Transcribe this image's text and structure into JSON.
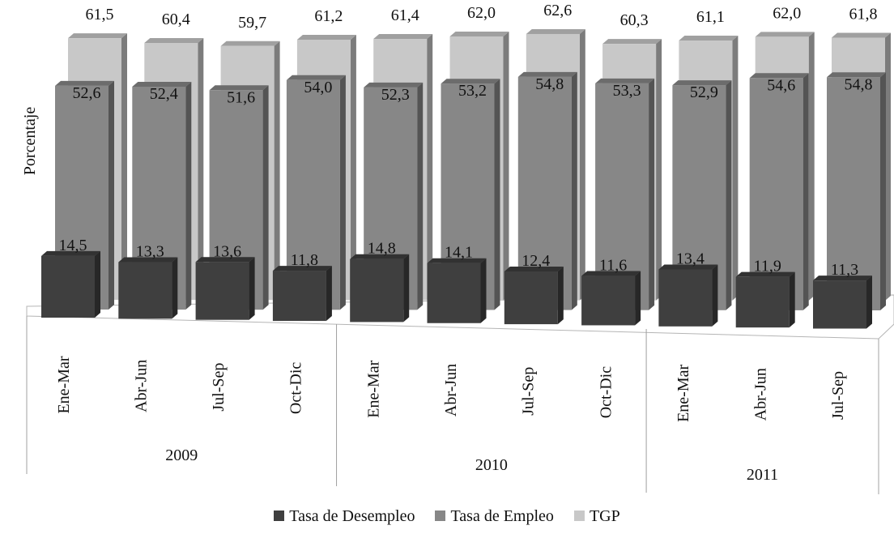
{
  "chart_data": {
    "type": "bar",
    "ylabel": "Porcentaje",
    "groups": [
      {
        "label": "2009",
        "categories": [
          "Ene-Mar",
          "Abr-Jun",
          "Jul-Sep",
          "Oct-Dic"
        ]
      },
      {
        "label": "2010",
        "categories": [
          "Ene-Mar",
          "Abr-Jun",
          "Jul-Sep",
          "Oct-Dic"
        ]
      },
      {
        "label": "2011",
        "categories": [
          "Ene-Mar",
          "Abr-Jun",
          "Jul-Sep"
        ]
      }
    ],
    "categories": [
      "Ene-Mar",
      "Abr-Jun",
      "Jul-Sep",
      "Oct-Dic",
      "Ene-Mar",
      "Abr-Jun",
      "Jul-Sep",
      "Oct-Dic",
      "Ene-Mar",
      "Abr-Jun",
      "Jul-Sep"
    ],
    "series": [
      {
        "name": "Tasa de Desempleo",
        "color": "#3f3f3f",
        "values": [
          14.5,
          13.3,
          13.6,
          11.8,
          14.8,
          14.1,
          12.4,
          11.6,
          13.4,
          11.9,
          11.3
        ],
        "labels": [
          "14,5",
          "13,3",
          "13,6",
          "11,8",
          "14,8",
          "14,1",
          "12,4",
          "11,6",
          "13,4",
          "11,9",
          "11,3"
        ]
      },
      {
        "name": "Tasa de Empleo",
        "color": "#878787",
        "values": [
          52.6,
          52.4,
          51.6,
          54.0,
          52.3,
          53.2,
          54.8,
          53.3,
          52.9,
          54.6,
          54.8
        ],
        "labels": [
          "52,6",
          "52,4",
          "51,6",
          "54,0",
          "52,3",
          "53,2",
          "54,8",
          "53,3",
          "52,9",
          "54,6",
          "54,8"
        ]
      },
      {
        "name": "TGP",
        "color": "#c8c8c8",
        "values": [
          61.5,
          60.4,
          59.7,
          61.2,
          61.4,
          62.0,
          62.6,
          60.3,
          61.1,
          62.0,
          61.8
        ],
        "labels": [
          "61,5",
          "60,4",
          "59,7",
          "61,2",
          "61,4",
          "62,0",
          "62,6",
          "60,3",
          "61,1",
          "62,0",
          "61,8"
        ]
      }
    ],
    "legend": "bottom",
    "grid": false
  }
}
